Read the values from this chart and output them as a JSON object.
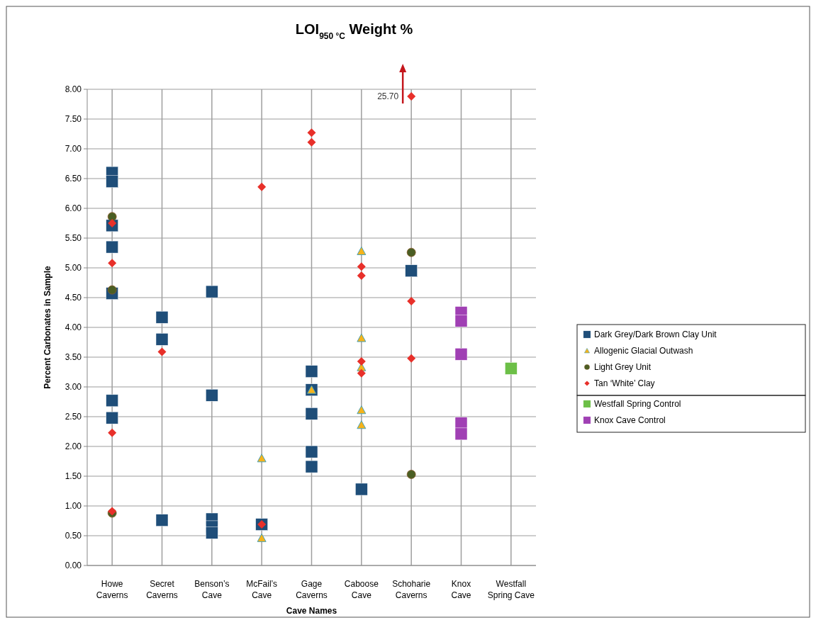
{
  "chart_data": {
    "type": "scatter",
    "title": "LOI$_{950 °C}$ Weight %",
    "xlabel": "Cave Names",
    "ylabel": "Percent Carbonates in Sample",
    "categories": [
      "Howe Caverns",
      "Secret Caverns",
      "Benson’s Cave",
      "McFail’s Cave",
      "Gage Caverns",
      "Caboose Cave",
      "Schoharie Caverns",
      "Knox Cave",
      "Westfall Spring Cave"
    ],
    "ylim": [
      0,
      8
    ],
    "yticks": [
      {
        "value": 0,
        "label": "0.00"
      },
      {
        "value": 0.5,
        "label": "0.50"
      },
      {
        "value": 1,
        "label": "1.00"
      },
      {
        "value": 1.5,
        "label": "1.50"
      },
      {
        "value": 2,
        "label": "2.00"
      },
      {
        "value": 2.5,
        "label": "2.50"
      },
      {
        "value": 3,
        "label": "3.00"
      },
      {
        "value": 3.5,
        "label": "3.50"
      },
      {
        "value": 4,
        "label": "4.00"
      },
      {
        "value": 4.5,
        "label": "4.50"
      },
      {
        "value": 5,
        "label": "5.00"
      },
      {
        "value": 5.5,
        "label": "5.50"
      },
      {
        "value": 6,
        "label": "6.00"
      },
      {
        "value": 6.5,
        "label": "6.50"
      },
      {
        "value": 7,
        "label": "7.00"
      },
      {
        "value": 7.5,
        "label": "7.50"
      },
      {
        "value": 8,
        "label": "8.00"
      }
    ],
    "grid": true,
    "legend": "right",
    "series": [
      {
        "name": "Dark Grey/Dark Brown Clay Unit",
        "color": "#1f4e79",
        "marker": "square",
        "x": [
          "Howe Caverns",
          "Howe Caverns",
          "Howe Caverns",
          "Howe Caverns",
          "Howe Caverns",
          "Howe Caverns",
          "Howe Caverns",
          "Secret Caverns",
          "Secret Caverns",
          "Secret Caverns",
          "Benson’s Cave",
          "Benson’s Cave",
          "Benson’s Cave",
          "Benson’s Cave",
          "Benson’s Cave",
          "McFail’s Cave",
          "Gage Caverns",
          "Gage Caverns",
          "Gage Caverns",
          "Gage Caverns",
          "Gage Caverns",
          "Caboose Cave",
          "Schoharie Caverns"
        ],
        "values": [
          6.6,
          6.45,
          5.71,
          5.35,
          4.57,
          2.77,
          2.48,
          4.17,
          3.8,
          0.76,
          4.6,
          2.86,
          0.78,
          0.65,
          0.55,
          0.69,
          3.26,
          2.95,
          2.55,
          1.91,
          1.66,
          1.28,
          4.95
        ]
      },
      {
        "name": "Allogenic Glacial Outwash",
        "color": "#f5b31b",
        "marker": "triangle",
        "x": [
          "McFail’s Cave",
          "McFail’s Cave",
          "Gage Caverns",
          "Caboose Cave",
          "Caboose Cave",
          "Caboose Cave",
          "Caboose Cave",
          "Caboose Cave"
        ],
        "values": [
          1.8,
          0.46,
          2.95,
          5.28,
          3.82,
          3.33,
          2.61,
          2.36
        ]
      },
      {
        "name": "Light Grey Unit",
        "color": "#4a5e23",
        "marker": "circle",
        "x": [
          "Howe Caverns",
          "Howe Caverns",
          "Howe Caverns",
          "Schoharie Caverns",
          "Schoharie Caverns"
        ],
        "values": [
          5.86,
          4.63,
          0.88,
          5.26,
          1.53
        ]
      },
      {
        "name": "Tan ‘White’ Clay",
        "color": "#e8302a",
        "marker": "diamond",
        "x": [
          "Howe Caverns",
          "Howe Caverns",
          "Howe Caverns",
          "Howe Caverns",
          "Secret Caverns",
          "McFail’s Cave",
          "McFail’s Cave",
          "Gage Caverns",
          "Gage Caverns",
          "Caboose Cave",
          "Caboose Cave",
          "Caboose Cave",
          "Caboose Cave",
          "Schoharie Caverns",
          "Schoharie Caverns",
          "Schoharie Caverns"
        ],
        "values": [
          5.75,
          5.08,
          2.23,
          0.91,
          3.59,
          6.36,
          0.69,
          7.27,
          7.11,
          5.02,
          4.87,
          3.43,
          3.23,
          7.88,
          4.44,
          3.48
        ]
      },
      {
        "name": "Westfall Spring Control",
        "color": "#6cbf47",
        "marker": "square",
        "x": [
          "Westfall Spring Cave"
        ],
        "values": [
          3.31
        ]
      },
      {
        "name": "Knox Cave Control",
        "color": "#a040b4",
        "marker": "square",
        "x": [
          "Knox Cave",
          "Knox Cave",
          "Knox Cave",
          "Knox Cave",
          "Knox Cave"
        ],
        "values": [
          4.25,
          4.11,
          3.55,
          2.39,
          2.21
        ]
      }
    ],
    "annotations": [
      {
        "text": "25.70",
        "x": "Schoharie Caverns",
        "y": 7.88
      }
    ]
  }
}
